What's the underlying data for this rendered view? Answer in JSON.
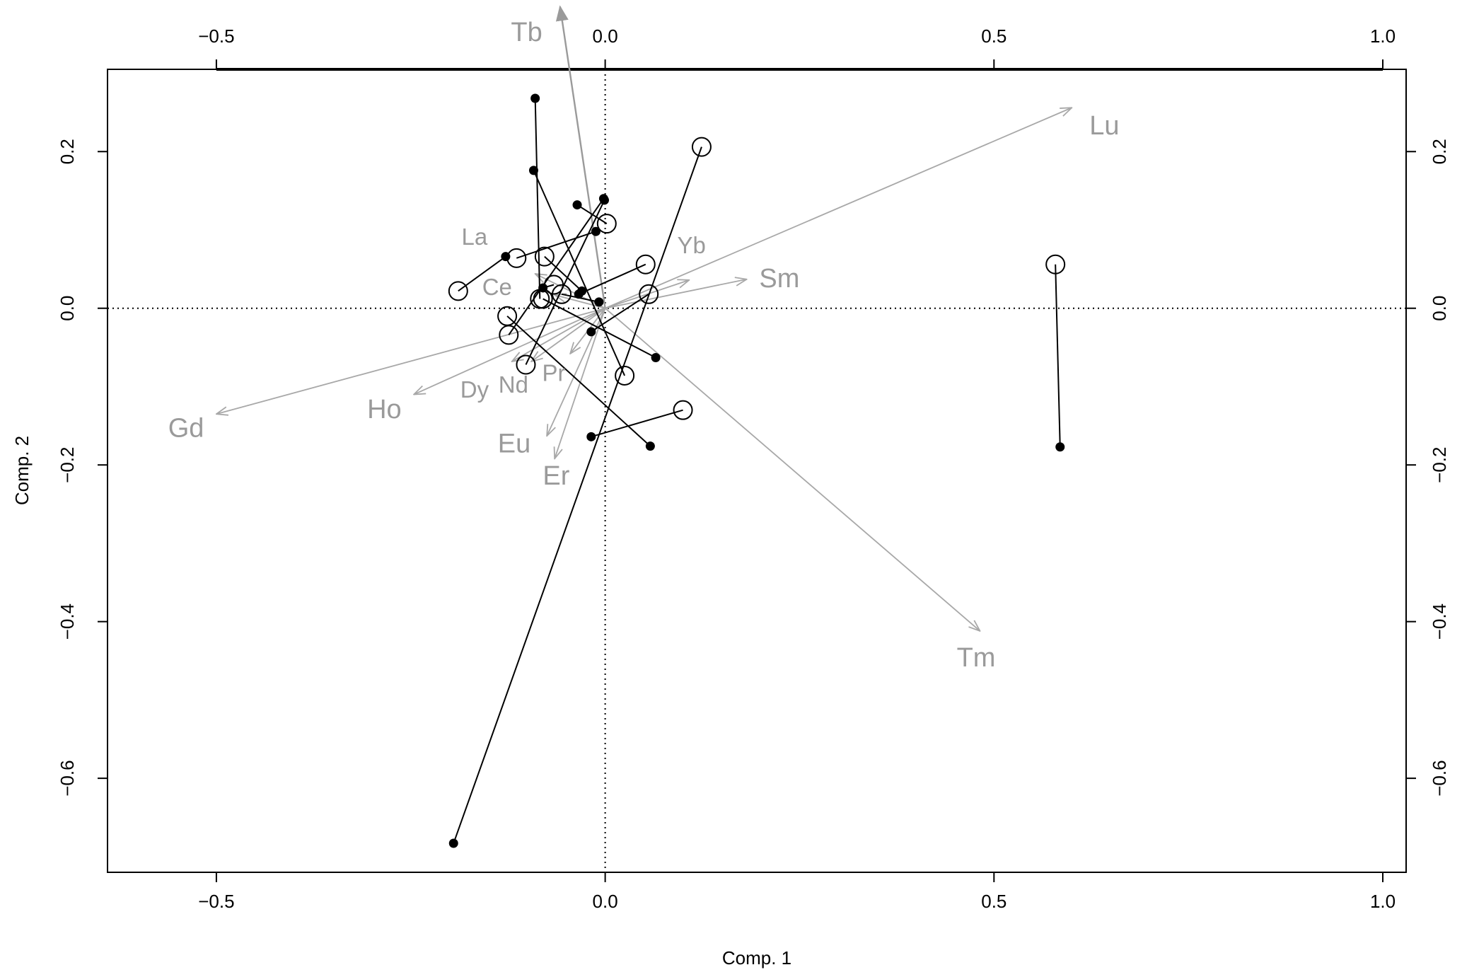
{
  "chart_data": {
    "type": "scatter",
    "subtype": "procrustes-biplot",
    "xlabel": "Comp. 1",
    "ylabel": "Comp. 2",
    "xlim": [
      -0.64,
      1.03
    ],
    "ylim": [
      -0.72,
      0.305
    ],
    "x_ticks": [
      {
        "value": -0.5,
        "label": "−0.5"
      },
      {
        "value": 0.0,
        "label": "0.0"
      },
      {
        "value": 0.5,
        "label": "0.5"
      },
      {
        "value": 1.0,
        "label": "1.0"
      }
    ],
    "y_ticks": [
      {
        "value": 0.2,
        "label": "0.2"
      },
      {
        "value": 0.0,
        "label": "0.0"
      },
      {
        "value": -0.2,
        "label": "−0.2"
      },
      {
        "value": -0.4,
        "label": "−0.4"
      },
      {
        "value": -0.6,
        "label": "−0.6"
      }
    ],
    "top_axis_ticks": [
      {
        "value": -0.5,
        "label": "−0.5"
      },
      {
        "value": 0.0,
        "label": "0.0"
      },
      {
        "value": 0.5,
        "label": "0.5"
      },
      {
        "value": 1.0,
        "label": "1.0"
      }
    ],
    "right_axis_ticks": [
      {
        "value": 0.2,
        "label": "0.2"
      },
      {
        "value": 0.0,
        "label": "0.0"
      },
      {
        "value": -0.2,
        "label": "−0.2"
      },
      {
        "value": -0.4,
        "label": "−0.4"
      },
      {
        "value": -0.6,
        "label": "−0.6"
      }
    ],
    "reference_lines": {
      "x": 0,
      "y": 0,
      "style": "dotted"
    },
    "segments": [
      {
        "open": [
          -0.189,
          0.022
        ],
        "filled": [
          -0.128,
          0.066
        ]
      },
      {
        "open": [
          -0.114,
          0.064
        ],
        "filled": [
          -0.012,
          0.098
        ]
      },
      {
        "open": [
          -0.078,
          0.066
        ],
        "filled": [
          -0.03,
          0.022
        ]
      },
      {
        "open": [
          -0.066,
          0.03
        ],
        "filled": [
          -0.08,
          0.026
        ]
      },
      {
        "open": [
          -0.056,
          0.018
        ],
        "filled": [
          -0.008,
          0.008
        ]
      },
      {
        "open": [
          -0.084,
          0.012
        ],
        "filled": [
          -0.09,
          0.268
        ]
      },
      {
        "open": [
          0.002,
          0.108
        ],
        "filled": [
          -0.036,
          0.132
        ]
      },
      {
        "open": [
          0.052,
          0.056
        ],
        "filled": [
          -0.034,
          0.018
        ]
      },
      {
        "open": [
          0.056,
          0.018
        ],
        "filled": [
          -0.018,
          -0.03
        ]
      },
      {
        "open": [
          -0.126,
          -0.01
        ],
        "filled": [
          0.058,
          -0.176
        ]
      },
      {
        "open": [
          -0.124,
          -0.034
        ],
        "filled": [
          -0.002,
          0.14
        ]
      },
      {
        "open": [
          -0.102,
          -0.072
        ],
        "filled": [
          -0.001,
          0.138
        ]
      },
      {
        "open": [
          0.025,
          -0.086
        ],
        "filled": [
          -0.092,
          0.176
        ]
      },
      {
        "open": [
          0.1,
          -0.13
        ],
        "filled": [
          -0.018,
          -0.164
        ]
      },
      {
        "open": [
          0.124,
          0.206
        ],
        "filled": [
          -0.195,
          -0.683
        ]
      },
      {
        "open": [
          0.579,
          0.056
        ],
        "filled": [
          0.585,
          -0.177
        ]
      },
      {
        "open": [
          -0.08,
          0.012
        ],
        "filled": [
          0.065,
          -0.063
        ]
      }
    ],
    "loadings": [
      {
        "name": "Tb",
        "x": -0.058,
        "y": 0.385
      },
      {
        "name": "Lu",
        "x": 0.6,
        "y": 0.256
      },
      {
        "name": "Sm",
        "x": 0.182,
        "y": 0.037
      },
      {
        "name": "Yb",
        "x": 0.108,
        "y": 0.036
      },
      {
        "name": "La",
        "x": -0.09,
        "y": 0.044
      },
      {
        "name": "Ce",
        "x": -0.065,
        "y": 0.017
      },
      {
        "name": "Gd",
        "x": -0.5,
        "y": -0.135
      },
      {
        "name": "Ho",
        "x": -0.246,
        "y": -0.11
      },
      {
        "name": "Dy",
        "x": -0.12,
        "y": -0.068
      },
      {
        "name": "Nd",
        "x": -0.095,
        "y": -0.068
      },
      {
        "name": "Pr",
        "x": -0.045,
        "y": -0.058
      },
      {
        "name": "Eu",
        "x": -0.075,
        "y": -0.163
      },
      {
        "name": "Er",
        "x": -0.065,
        "y": -0.192
      },
      {
        "name": "Tm",
        "x": 0.482,
        "y": -0.412
      }
    ],
    "loading_labels": [
      {
        "name": "Tb",
        "x": -0.101,
        "y": 0.35,
        "size": 38
      },
      {
        "name": "Lu",
        "x": 0.642,
        "y": 0.231,
        "size": 38
      },
      {
        "name": "Sm",
        "x": 0.224,
        "y": 0.036,
        "size": 38
      },
      {
        "name": "Yb",
        "x": 0.111,
        "y": 0.078,
        "size": 33
      },
      {
        "name": "La",
        "x": -0.168,
        "y": 0.089,
        "size": 33
      },
      {
        "name": "Ce",
        "x": -0.139,
        "y": 0.025,
        "size": 33
      },
      {
        "name": "Gd",
        "x": -0.539,
        "y": -0.155,
        "size": 38
      },
      {
        "name": "Ho",
        "x": -0.284,
        "y": -0.131,
        "size": 38
      },
      {
        "name": "Dy",
        "x": -0.168,
        "y": -0.106,
        "size": 33
      },
      {
        "name": "Nd",
        "x": -0.118,
        "y": -0.1,
        "size": 33
      },
      {
        "name": "Pr",
        "x": -0.066,
        "y": -0.085,
        "size": 33
      },
      {
        "name": "Eu",
        "x": -0.117,
        "y": -0.175,
        "size": 38
      },
      {
        "name": "Er",
        "x": -0.063,
        "y": -0.216,
        "size": 38
      },
      {
        "name": "Tm",
        "x": 0.477,
        "y": -0.448,
        "size": 38
      }
    ],
    "colors": {
      "points": "#000000",
      "arrows": "#a8a8a8",
      "arrow_labels": "#9a9a9a"
    },
    "grid": false
  }
}
